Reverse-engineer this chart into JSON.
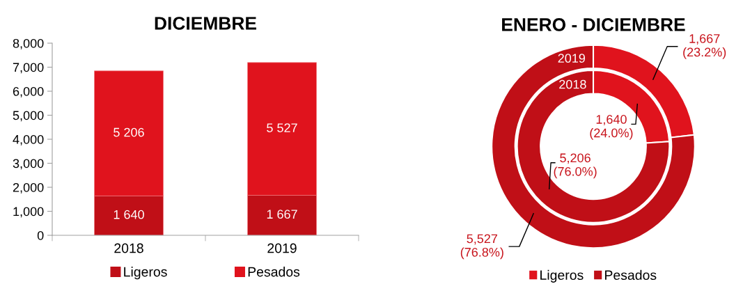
{
  "chart_data": [
    {
      "type": "bar",
      "title": "DICIEMBRE",
      "stacked": true,
      "categories": [
        "2018",
        "2019"
      ],
      "series": [
        {
          "name": "Ligeros",
          "color": "#c00f17",
          "values": [
            1640,
            1667
          ],
          "value_labels": [
            "1 640",
            "1 667"
          ]
        },
        {
          "name": "Pesados",
          "color": "#e0131d",
          "values": [
            5206,
            5527
          ],
          "value_labels": [
            "5 206",
            "5 527"
          ]
        }
      ],
      "ylim": [
        0,
        8000
      ],
      "yticks": [
        {
          "value": 0,
          "label": "0"
        },
        {
          "value": 1000,
          "label": "1,000"
        },
        {
          "value": 2000,
          "label": "2,000"
        },
        {
          "value": 3000,
          "label": "3,000"
        },
        {
          "value": 4000,
          "label": "4,000"
        },
        {
          "value": 5000,
          "label": "5,000"
        },
        {
          "value": 6000,
          "label": "6,000"
        },
        {
          "value": 7000,
          "label": "7,000"
        },
        {
          "value": 8000,
          "label": "8,000"
        }
      ],
      "grid": false,
      "legend": "bottom"
    },
    {
      "type": "donut",
      "title": "ENERO - DICIEMBRE",
      "categories": [
        "Ligeros",
        "Pesados"
      ],
      "colors": [
        "#e0131d",
        "#c00f17"
      ],
      "series": [
        {
          "name": "2018",
          "values": [
            1640,
            5206
          ],
          "value_labels": [
            "1,640\n(24.0%)",
            "5,206\n(76.0%)"
          ]
        },
        {
          "name": "2019",
          "values": [
            1667,
            5527
          ],
          "value_labels": [
            "1,667\n(23.2%)",
            "5,527\n(76.8%)"
          ]
        }
      ],
      "legend": "bottom"
    }
  ]
}
